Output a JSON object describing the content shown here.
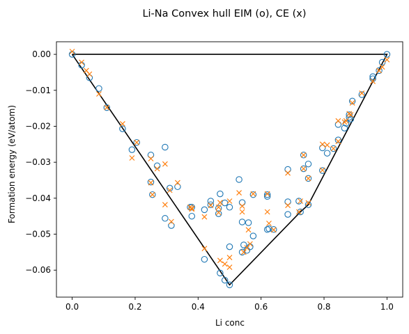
{
  "chart_data": {
    "type": "scatter",
    "title": "Li-Na Convex hull EIM (o), CE (x)",
    "xlabel": "Li conc",
    "ylabel": "Formation energy (eV/atom)",
    "xlim": [
      -0.05,
      1.05
    ],
    "ylim": [
      -0.0675,
      0.0035
    ],
    "xticks": [
      0.0,
      0.2,
      0.4,
      0.6,
      0.8,
      1.0
    ],
    "xtick_labels": [
      "0.0",
      "0.2",
      "0.4",
      "0.6",
      "0.8",
      "1.0"
    ],
    "yticks": [
      0.0,
      -0.01,
      -0.02,
      -0.03,
      -0.04,
      -0.05,
      -0.06
    ],
    "ytick_labels": [
      "0.00",
      "−0.01",
      "−0.02",
      "−0.03",
      "−0.04",
      "−0.05",
      "−0.06"
    ],
    "grid": false,
    "colors": {
      "eim": "#1f77b4",
      "ce": "#ff7f0e",
      "hull": "#000000"
    },
    "series": [
      {
        "marker": "circle",
        "points": [
          [
            0.0,
            0.0
          ],
          [
            0.03,
            -0.003
          ],
          [
            0.055,
            -0.0065
          ],
          [
            0.085,
            -0.0095
          ],
          [
            0.11,
            -0.0148
          ],
          [
            0.16,
            -0.0207
          ],
          [
            0.19,
            -0.0265
          ],
          [
            0.205,
            -0.0245
          ],
          [
            0.25,
            -0.028
          ],
          [
            0.25,
            -0.0355
          ],
          [
            0.255,
            -0.039
          ],
          [
            0.27,
            -0.031
          ],
          [
            0.295,
            -0.0258
          ],
          [
            0.295,
            -0.0456
          ],
          [
            0.31,
            -0.0372
          ],
          [
            0.315,
            -0.0476
          ],
          [
            0.335,
            -0.0368
          ],
          [
            0.375,
            -0.0425
          ],
          [
            0.38,
            -0.045
          ],
          [
            0.38,
            -0.0425
          ],
          [
            0.42,
            -0.0432
          ],
          [
            0.42,
            -0.057
          ],
          [
            0.44,
            -0.0408
          ],
          [
            0.44,
            -0.0418
          ],
          [
            0.465,
            -0.0428
          ],
          [
            0.465,
            -0.0443
          ],
          [
            0.47,
            -0.0388
          ],
          [
            0.47,
            -0.0608
          ],
          [
            0.485,
            -0.0628
          ],
          [
            0.485,
            -0.0413
          ],
          [
            0.5,
            -0.0425
          ],
          [
            0.5,
            -0.0535
          ],
          [
            0.5,
            -0.0641
          ],
          [
            0.53,
            -0.0348
          ],
          [
            0.54,
            -0.0412
          ],
          [
            0.54,
            -0.0466
          ],
          [
            0.54,
            -0.055
          ],
          [
            0.545,
            -0.053
          ],
          [
            0.555,
            -0.0545
          ],
          [
            0.56,
            -0.0468
          ],
          [
            0.565,
            -0.0535
          ],
          [
            0.575,
            -0.0505
          ],
          [
            0.575,
            -0.039
          ],
          [
            0.62,
            -0.039
          ],
          [
            0.62,
            -0.0395
          ],
          [
            0.62,
            -0.0487
          ],
          [
            0.625,
            -0.0485
          ],
          [
            0.64,
            -0.0487
          ],
          [
            0.685,
            -0.032
          ],
          [
            0.685,
            -0.041
          ],
          [
            0.685,
            -0.0445
          ],
          [
            0.72,
            -0.0408
          ],
          [
            0.725,
            -0.0438
          ],
          [
            0.735,
            -0.028
          ],
          [
            0.735,
            -0.0318
          ],
          [
            0.75,
            -0.0305
          ],
          [
            0.75,
            -0.0345
          ],
          [
            0.75,
            -0.0418
          ],
          [
            0.795,
            -0.026
          ],
          [
            0.795,
            -0.0323
          ],
          [
            0.81,
            -0.0275
          ],
          [
            0.83,
            -0.0262
          ],
          [
            0.845,
            -0.0195
          ],
          [
            0.845,
            -0.0238
          ],
          [
            0.865,
            -0.0205
          ],
          [
            0.87,
            -0.0192
          ],
          [
            0.88,
            -0.0168
          ],
          [
            0.88,
            -0.0175
          ],
          [
            0.885,
            -0.018
          ],
          [
            0.89,
            -0.013
          ],
          [
            0.92,
            -0.0112
          ],
          [
            0.955,
            -0.0068
          ],
          [
            0.955,
            -0.0062
          ],
          [
            0.975,
            -0.0045
          ],
          [
            0.985,
            -0.0022
          ],
          [
            1.0,
            0.0
          ]
        ]
      },
      {
        "marker": "x",
        "points": [
          [
            0.0,
            0.0008
          ],
          [
            0.03,
            -0.0022
          ],
          [
            0.045,
            -0.0045
          ],
          [
            0.055,
            -0.0055
          ],
          [
            0.085,
            -0.011
          ],
          [
            0.11,
            -0.0148
          ],
          [
            0.16,
            -0.0193
          ],
          [
            0.19,
            -0.0288
          ],
          [
            0.205,
            -0.0245
          ],
          [
            0.25,
            -0.029
          ],
          [
            0.25,
            -0.0357
          ],
          [
            0.255,
            -0.039
          ],
          [
            0.27,
            -0.0318
          ],
          [
            0.295,
            -0.0418
          ],
          [
            0.295,
            -0.0305
          ],
          [
            0.31,
            -0.0378
          ],
          [
            0.315,
            -0.0465
          ],
          [
            0.335,
            -0.0357
          ],
          [
            0.375,
            -0.0425
          ],
          [
            0.38,
            -0.0428
          ],
          [
            0.38,
            -0.043
          ],
          [
            0.42,
            -0.0452
          ],
          [
            0.42,
            -0.054
          ],
          [
            0.44,
            -0.042
          ],
          [
            0.465,
            -0.0425
          ],
          [
            0.465,
            -0.044
          ],
          [
            0.47,
            -0.0412
          ],
          [
            0.47,
            -0.0573
          ],
          [
            0.485,
            -0.0583
          ],
          [
            0.5,
            -0.0408
          ],
          [
            0.5,
            -0.0565
          ],
          [
            0.5,
            -0.0592
          ],
          [
            0.53,
            -0.0385
          ],
          [
            0.54,
            -0.0422
          ],
          [
            0.54,
            -0.0438
          ],
          [
            0.545,
            -0.055
          ],
          [
            0.555,
            -0.0538
          ],
          [
            0.56,
            -0.0488
          ],
          [
            0.565,
            -0.0527
          ],
          [
            0.575,
            -0.0388
          ],
          [
            0.62,
            -0.0388
          ],
          [
            0.62,
            -0.0438
          ],
          [
            0.625,
            -0.047
          ],
          [
            0.64,
            -0.0488
          ],
          [
            0.685,
            -0.033
          ],
          [
            0.685,
            -0.042
          ],
          [
            0.72,
            -0.0438
          ],
          [
            0.725,
            -0.0408
          ],
          [
            0.735,
            -0.028
          ],
          [
            0.735,
            -0.0318
          ],
          [
            0.75,
            -0.0345
          ],
          [
            0.75,
            -0.0413
          ],
          [
            0.795,
            -0.025
          ],
          [
            0.795,
            -0.0322
          ],
          [
            0.81,
            -0.0252
          ],
          [
            0.83,
            -0.0262
          ],
          [
            0.845,
            -0.0185
          ],
          [
            0.845,
            -0.0242
          ],
          [
            0.865,
            -0.0188
          ],
          [
            0.87,
            -0.0185
          ],
          [
            0.88,
            -0.0165
          ],
          [
            0.885,
            -0.0168
          ],
          [
            0.89,
            -0.0135
          ],
          [
            0.92,
            -0.0108
          ],
          [
            0.955,
            -0.0075
          ],
          [
            0.975,
            -0.0045
          ],
          [
            0.985,
            -0.0035
          ],
          [
            1.0,
            -0.0015
          ]
        ]
      }
    ],
    "hull": {
      "points": [
        [
          0.0,
          0.0
        ],
        [
          0.5,
          -0.0641
        ],
        [
          0.725,
          -0.0438
        ],
        [
          0.75,
          -0.0418
        ],
        [
          1.0,
          0.0
        ],
        [
          0.0,
          0.0
        ]
      ]
    }
  }
}
